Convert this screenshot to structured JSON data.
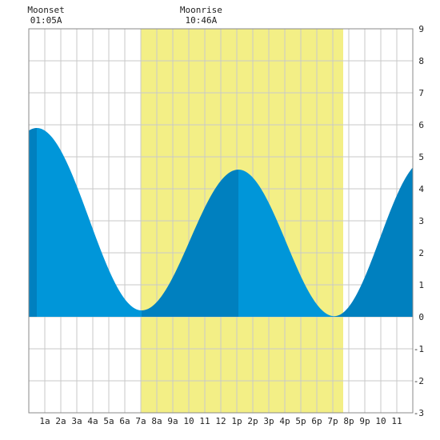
{
  "chart_data": {
    "type": "area",
    "title": "",
    "xlabel": "",
    "ylabel": "",
    "ylim": [
      -3,
      9
    ],
    "yticks": [
      -3,
      -2,
      -1,
      0,
      1,
      2,
      3,
      4,
      5,
      6,
      7,
      8,
      9
    ],
    "xlim": [
      0,
      24
    ],
    "x_tick_labels": [
      "1a",
      "2a",
      "3a",
      "4a",
      "5a",
      "6a",
      "7a",
      "8a",
      "9a",
      "10",
      "11",
      "12",
      "1p",
      "2p",
      "3p",
      "4p",
      "5p",
      "6p",
      "7p",
      "8p",
      "9p",
      "10",
      "11"
    ],
    "grid": true,
    "daylight_shade": {
      "start_hour": 7,
      "end_hour": 19.65,
      "color": "#f3ef86"
    },
    "tide_extremes": [
      {
        "type": "high",
        "hour": 0.5,
        "height": 5.9
      },
      {
        "type": "low",
        "hour": 7.05,
        "height": 0.2
      },
      {
        "type": "high",
        "hour": 13.1,
        "height": 4.6
      },
      {
        "type": "low",
        "hour": 19.1,
        "height": 0.02
      },
      {
        "type": "high",
        "hour": 24.8,
        "height": 4.9
      }
    ],
    "series": [
      {
        "name": "",
        "color_rising": "#0080bf",
        "color_falling": "#0096d9"
      }
    ],
    "moon_events": [
      {
        "label": "Moonset",
        "time": "01:05A",
        "hour": 1.08
      },
      {
        "label": "Moonrise",
        "time": "10:46A",
        "hour": 10.77
      }
    ]
  },
  "colors": {
    "grid": "#c8c8c8",
    "frame": "#888888",
    "text": "#222222"
  }
}
